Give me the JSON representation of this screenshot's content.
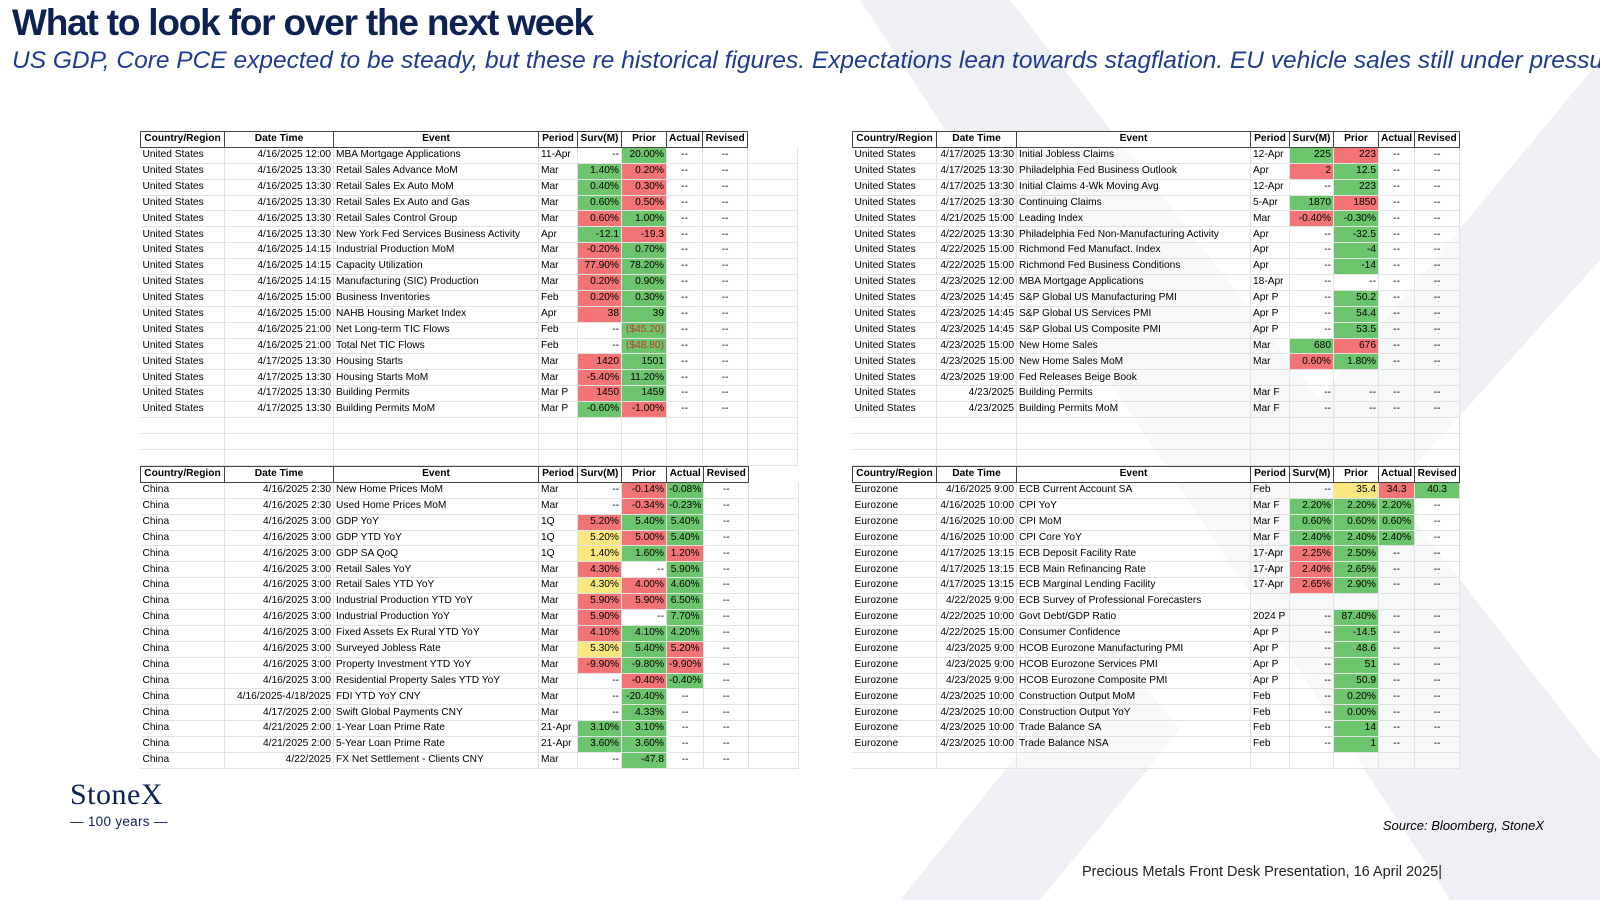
{
  "header": {
    "title": "What to look for over the next week",
    "subtitle": "US GDP, Core PCE expected to be steady, but these re historical figures.  Expectations lean towards stagflation.  EU vehicle sales still under pressure"
  },
  "columns": [
    "Country/Region",
    "Date Time",
    "Event",
    "Period",
    "Surv(M)",
    "Prior",
    "Actual",
    "Revised"
  ],
  "colors": {
    "green": "#6cc46c",
    "red": "#f27474",
    "yellow": "#fbe77f",
    "title": "#0e2153"
  },
  "tables": {
    "us_left": [
      [
        "United States",
        "4/16/2025 12:00",
        "MBA Mortgage Applications",
        "11-Apr",
        "--",
        "20.00%",
        "--",
        "--"
      ],
      [
        "United States",
        "4/16/2025 13:30",
        "Retail Sales Advance MoM",
        "Mar",
        "1.40%",
        "0.20%",
        "--",
        "--"
      ],
      [
        "United States",
        "4/16/2025 13:30",
        "Retail Sales Ex Auto MoM",
        "Mar",
        "0.40%",
        "0.30%",
        "--",
        "--"
      ],
      [
        "United States",
        "4/16/2025 13:30",
        "Retail Sales Ex Auto and Gas",
        "Mar",
        "0.60%",
        "0.50%",
        "--",
        "--"
      ],
      [
        "United States",
        "4/16/2025 13:30",
        "Retail Sales Control Group",
        "Mar",
        "0.60%",
        "1.00%",
        "--",
        "--"
      ],
      [
        "United States",
        "4/16/2025 13:30",
        "New York Fed Services Business Activity",
        "Apr",
        "-12.1",
        "-19.3",
        "--",
        "--"
      ],
      [
        "United States",
        "4/16/2025 14:15",
        "Industrial Production MoM",
        "Mar",
        "-0.20%",
        "0.70%",
        "--",
        "--"
      ],
      [
        "United States",
        "4/16/2025 14:15",
        "Capacity Utilization",
        "Mar",
        "77.90%",
        "78.20%",
        "--",
        "--"
      ],
      [
        "United States",
        "4/16/2025 14:15",
        "Manufacturing (SIC) Production",
        "Mar",
        "0.20%",
        "0.90%",
        "--",
        "--"
      ],
      [
        "United States",
        "4/16/2025 15:00",
        "Business Inventories",
        "Feb",
        "0.20%",
        "0.30%",
        "--",
        "--"
      ],
      [
        "United States",
        "4/16/2025 15:00",
        "NAHB Housing Market Index",
        "Apr",
        "38",
        "39",
        "--",
        "--"
      ],
      [
        "United States",
        "4/16/2025 21:00",
        "Net Long-term TIC Flows",
        "Feb",
        "--",
        "($45.20)",
        "--",
        "--"
      ],
      [
        "United States",
        "4/16/2025 21:00",
        "Total Net TIC Flows",
        "Feb",
        "--",
        "($48.80)",
        "--",
        "--"
      ],
      [
        "United States",
        "4/17/2025 13:30",
        "Housing Starts",
        "Mar",
        "1420",
        "1501",
        "--",
        "--"
      ],
      [
        "United States",
        "4/17/2025 13:30",
        "Housing Starts MoM",
        "Mar",
        "-5.40%",
        "11.20%",
        "--",
        "--"
      ],
      [
        "United States",
        "4/17/2025 13:30",
        "Building Permits",
        "Mar P",
        "1450",
        "1459",
        "--",
        "--"
      ],
      [
        "United States",
        "4/17/2025 13:30",
        "Building Permits MoM",
        "Mar P",
        "-0.60%",
        "-1.00%",
        "--",
        "--"
      ]
    ],
    "us_right": [
      [
        "United States",
        "4/17/2025 13:30",
        "Initial Jobless Claims",
        "12-Apr",
        "225",
        "223",
        "--",
        "--"
      ],
      [
        "United States",
        "4/17/2025 13:30",
        "Philadelphia Fed Business Outlook",
        "Apr",
        "2",
        "12.5",
        "--",
        "--"
      ],
      [
        "United States",
        "4/17/2025 13:30",
        "Initial Claims 4-Wk Moving Avg",
        "12-Apr",
        "--",
        "223",
        "--",
        "--"
      ],
      [
        "United States",
        "4/17/2025 13:30",
        "Continuing Claims",
        "5-Apr",
        "1870",
        "1850",
        "--",
        "--"
      ],
      [
        "United States",
        "4/21/2025 15:00",
        "Leading Index",
        "Mar",
        "-0.40%",
        "-0.30%",
        "--",
        "--"
      ],
      [
        "United States",
        "4/22/2025 13:30",
        "Philadelphia Fed Non-Manufacturing Activity",
        "Apr",
        "--",
        "-32.5",
        "--",
        "--"
      ],
      [
        "United States",
        "4/22/2025 15:00",
        "Richmond Fed Manufact. Index",
        "Apr",
        "--",
        "-4",
        "--",
        "--"
      ],
      [
        "United States",
        "4/22/2025 15:00",
        "Richmond Fed Business Conditions",
        "Apr",
        "--",
        "-14",
        "--",
        "--"
      ],
      [
        "United States",
        "4/23/2025 12:00",
        "MBA Mortgage Applications",
        "18-Apr",
        "--",
        "--",
        "--",
        "--"
      ],
      [
        "United States",
        "4/23/2025 14:45",
        "S&P Global US Manufacturing PMI",
        "Apr P",
        "--",
        "50.2",
        "--",
        "--"
      ],
      [
        "United States",
        "4/23/2025 14:45",
        "S&P Global US Services PMI",
        "Apr P",
        "--",
        "54.4",
        "--",
        "--"
      ],
      [
        "United States",
        "4/23/2025 14:45",
        "S&P Global US Composite PMI",
        "Apr P",
        "--",
        "53.5",
        "--",
        "--"
      ],
      [
        "United States",
        "4/23/2025 15:00",
        "New Home Sales",
        "Mar",
        "680",
        "676",
        "--",
        "--"
      ],
      [
        "United States",
        "4/23/2025 15:00",
        "New Home Sales MoM",
        "Mar",
        "0.60%",
        "1.80%",
        "--",
        "--"
      ],
      [
        "United States",
        "4/23/2025 19:00",
        "Fed Releases Beige Book",
        "",
        "",
        "",
        "",
        ""
      ],
      [
        "United States",
        "4/23/2025",
        "Building Permits",
        "Mar F",
        "--",
        "--",
        "--",
        "--"
      ],
      [
        "United States",
        "4/23/2025",
        "Building Permits MoM",
        "Mar F",
        "--",
        "--",
        "--",
        "--"
      ]
    ],
    "china": [
      [
        "China",
        "4/16/2025 2:30",
        "New Home Prices MoM",
        "Mar",
        "--",
        "-0.14%",
        "-0.08%",
        "--"
      ],
      [
        "China",
        "4/16/2025 2:30",
        "Used Home Prices MoM",
        "Mar",
        "--",
        "-0.34%",
        "-0.23%",
        "--"
      ],
      [
        "China",
        "4/16/2025 3:00",
        "GDP YoY",
        "1Q",
        "5.20%",
        "5.40%",
        "5.40%",
        "--"
      ],
      [
        "China",
        "4/16/2025 3:00",
        "GDP YTD YoY",
        "1Q",
        "5.20%",
        "5.00%",
        "5.40%",
        "--"
      ],
      [
        "China",
        "4/16/2025 3:00",
        "GDP SA QoQ",
        "1Q",
        "1.40%",
        "1.60%",
        "1.20%",
        "--"
      ],
      [
        "China",
        "4/16/2025 3:00",
        "Retail Sales YoY",
        "Mar",
        "4.30%",
        "--",
        "5.90%",
        "--"
      ],
      [
        "China",
        "4/16/2025 3:00",
        "Retail Sales YTD YoY",
        "Mar",
        "4.30%",
        "4.00%",
        "4.60%",
        "--"
      ],
      [
        "China",
        "4/16/2025 3:00",
        "Industrial Production YTD YoY",
        "Mar",
        "5.90%",
        "5.90%",
        "6.50%",
        "--"
      ],
      [
        "China",
        "4/16/2025 3:00",
        "Industrial Production YoY",
        "Mar",
        "5.90%",
        "--",
        "7.70%",
        "--"
      ],
      [
        "China",
        "4/16/2025 3:00",
        "Fixed Assets Ex Rural YTD YoY",
        "Mar",
        "4.10%",
        "4.10%",
        "4.20%",
        "--"
      ],
      [
        "China",
        "4/16/2025 3:00",
        "Surveyed Jobless Rate",
        "Mar",
        "5.30%",
        "5.40%",
        "5.20%",
        "--"
      ],
      [
        "China",
        "4/16/2025 3:00",
        "Property Investment YTD YoY",
        "Mar",
        "-9.90%",
        "-9.80%",
        "-9.90%",
        "--"
      ],
      [
        "China",
        "4/16/2025 3:00",
        "Residential Property Sales YTD YoY",
        "Mar",
        "--",
        "-0.40%",
        "-0.40%",
        "--"
      ],
      [
        "China",
        "4/16/2025-4/18/2025",
        "FDI YTD YoY CNY",
        "Mar",
        "--",
        "-20.40%",
        "--",
        "--"
      ],
      [
        "China",
        "4/17/2025 2:00",
        "Swift Global Payments CNY",
        "Mar",
        "--",
        "4.33%",
        "--",
        "--"
      ],
      [
        "China",
        "4/21/2025 2:00",
        "1-Year Loan Prime Rate",
        "21-Apr",
        "3.10%",
        "3.10%",
        "--",
        "--"
      ],
      [
        "China",
        "4/21/2025 2:00",
        "5-Year Loan Prime Rate",
        "21-Apr",
        "3.60%",
        "3.60%",
        "--",
        "--"
      ],
      [
        "China",
        "4/22/2025",
        "FX Net Settlement - Clients CNY",
        "Mar",
        "--",
        "-47.8",
        "--",
        "--"
      ]
    ],
    "eurozone": [
      [
        "Eurozone",
        "4/16/2025 9:00",
        "ECB Current Account SA",
        "Feb",
        "--",
        "35.4",
        "34.3",
        "40.3"
      ],
      [
        "Eurozone",
        "4/16/2025 10:00",
        "CPI YoY",
        "Mar F",
        "2.20%",
        "2.20%",
        "2.20%",
        "--"
      ],
      [
        "Eurozone",
        "4/16/2025 10:00",
        "CPI MoM",
        "Mar F",
        "0.60%",
        "0.60%",
        "0.60%",
        "--"
      ],
      [
        "Eurozone",
        "4/16/2025 10:00",
        "CPI Core YoY",
        "Mar F",
        "2.40%",
        "2.40%",
        "2.40%",
        "--"
      ],
      [
        "Eurozone",
        "4/17/2025 13:15",
        "ECB Deposit Facility Rate",
        "17-Apr",
        "2.25%",
        "2.50%",
        "--",
        "--"
      ],
      [
        "Eurozone",
        "4/17/2025 13:15",
        "ECB Main Refinancing Rate",
        "17-Apr",
        "2.40%",
        "2.65%",
        "--",
        "--"
      ],
      [
        "Eurozone",
        "4/17/2025 13:15",
        "ECB Marginal Lending Facility",
        "17-Apr",
        "2.65%",
        "2.90%",
        "--",
        "--"
      ],
      [
        "Eurozone",
        "4/22/2025 9:00",
        "ECB Survey of Professional Forecasters",
        "",
        "",
        "",
        "",
        ""
      ],
      [
        "Eurozone",
        "4/22/2025 10:00",
        "Govt Debt/GDP Ratio",
        "2024 P",
        "--",
        "87.40%",
        "--",
        "--"
      ],
      [
        "Eurozone",
        "4/22/2025 15:00",
        "Consumer Confidence",
        "Apr P",
        "--",
        "-14.5",
        "--",
        "--"
      ],
      [
        "Eurozone",
        "4/23/2025 9:00",
        "HCOB Eurozone Manufacturing PMI",
        "Apr P",
        "--",
        "48.6",
        "--",
        "--"
      ],
      [
        "Eurozone",
        "4/23/2025 9:00",
        "HCOB Eurozone Services PMI",
        "Apr P",
        "--",
        "51",
        "--",
        "--"
      ],
      [
        "Eurozone",
        "4/23/2025 9:00",
        "HCOB Eurozone Composite PMI",
        "Apr P",
        "--",
        "50.9",
        "--",
        "--"
      ],
      [
        "Eurozone",
        "4/23/2025 10:00",
        "Construction Output MoM",
        "Feb",
        "--",
        "0.20%",
        "--",
        "--"
      ],
      [
        "Eurozone",
        "4/23/2025 10:00",
        "Construction Output YoY",
        "Feb",
        "--",
        "0.00%",
        "--",
        "--"
      ],
      [
        "Eurozone",
        "4/23/2025 10:00",
        "Trade Balance SA",
        "Feb",
        "--",
        "14",
        "--",
        "--"
      ],
      [
        "Eurozone",
        "4/23/2025 10:00",
        "Trade Balance NSA",
        "Feb",
        "--",
        "1",
        "--",
        "--"
      ]
    ]
  },
  "cell_colors": {
    "us_left": {
      "0": {
        "5": "g"
      },
      "1": {
        "4": "g",
        "5": "r"
      },
      "2": {
        "4": "g",
        "5": "r"
      },
      "3": {
        "4": "g",
        "5": "r"
      },
      "4": {
        "4": "r",
        "5": "g"
      },
      "5": {
        "4": "g",
        "5": "r"
      },
      "6": {
        "4": "r",
        "5": "g"
      },
      "7": {
        "4": "r",
        "5": "g"
      },
      "8": {
        "4": "r",
        "5": "g"
      },
      "9": {
        "4": "r",
        "5": "g"
      },
      "10": {
        "4": "r",
        "5": "g"
      },
      "11": {
        "5": "g"
      },
      "12": {
        "5": "g"
      },
      "13": {
        "4": "r",
        "5": "g"
      },
      "14": {
        "4": "r",
        "5": "g"
      },
      "15": {
        "4": "r",
        "5": "g"
      },
      "16": {
        "4": "g",
        "5": "r"
      }
    },
    "us_right": {
      "0": {
        "4": "g",
        "5": "r"
      },
      "1": {
        "4": "r",
        "5": "g"
      },
      "2": {
        "5": "g"
      },
      "3": {
        "4": "g",
        "5": "r"
      },
      "4": {
        "4": "r",
        "5": "g"
      },
      "5": {
        "5": "g"
      },
      "6": {
        "5": "g"
      },
      "7": {
        "5": "g"
      },
      "9": {
        "5": "g"
      },
      "10": {
        "5": "g"
      },
      "11": {
        "5": "g"
      },
      "12": {
        "4": "g",
        "5": "r"
      },
      "13": {
        "4": "r",
        "5": "g"
      }
    },
    "china": {
      "0": {
        "5": "r",
        "6": "g"
      },
      "1": {
        "5": "r",
        "6": "g"
      },
      "2": {
        "4": "r",
        "5": "g",
        "6": "g"
      },
      "3": {
        "4": "y",
        "5": "r",
        "6": "g"
      },
      "4": {
        "4": "y",
        "5": "g",
        "6": "r"
      },
      "5": {
        "4": "r",
        "6": "g"
      },
      "6": {
        "4": "y",
        "5": "r",
        "6": "g"
      },
      "7": {
        "4": "r",
        "5": "r",
        "6": "g"
      },
      "8": {
        "4": "r",
        "6": "g"
      },
      "9": {
        "4": "r",
        "5": "g",
        "6": "g"
      },
      "10": {
        "4": "y",
        "5": "g",
        "6": "r"
      },
      "11": {
        "4": "r",
        "5": "g",
        "6": "r"
      },
      "12": {
        "5": "r",
        "6": "g"
      },
      "13": {
        "5": "g"
      },
      "14": {
        "5": "g"
      },
      "15": {
        "4": "g",
        "5": "g"
      },
      "16": {
        "4": "g",
        "5": "g"
      },
      "17": {
        "5": "g"
      }
    },
    "eurozone": {
      "0": {
        "5": "y",
        "6": "r",
        "7": "g"
      },
      "1": {
        "4": "g",
        "5": "g",
        "6": "g"
      },
      "2": {
        "4": "g",
        "5": "g",
        "6": "g"
      },
      "3": {
        "4": "g",
        "5": "g",
        "6": "g"
      },
      "4": {
        "4": "r",
        "5": "g"
      },
      "5": {
        "4": "r",
        "5": "g"
      },
      "6": {
        "4": "r",
        "5": "g"
      },
      "8": {
        "5": "g"
      },
      "9": {
        "5": "g"
      },
      "10": {
        "5": "g"
      },
      "11": {
        "5": "g"
      },
      "12": {
        "5": "g"
      },
      "13": {
        "5": "g"
      },
      "14": {
        "5": "g"
      },
      "15": {
        "5": "g"
      },
      "16": {
        "5": "g"
      }
    }
  },
  "logo": {
    "brand": "StoneX",
    "tagline": "— 100 years —"
  },
  "source": "Source: Bloomberg, StoneX",
  "footer": "Precious Metals Front Desk Presentation, 16 April 2025|"
}
